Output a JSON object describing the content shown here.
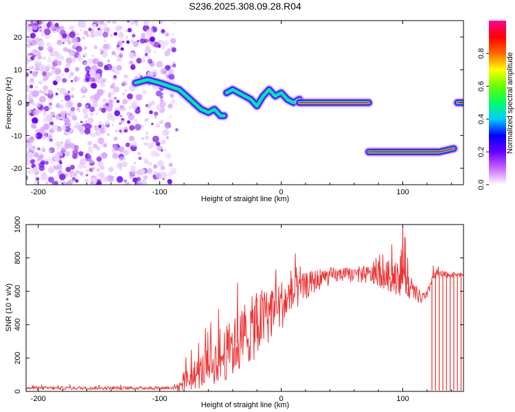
{
  "title": "S236.2025.308.09.28.R04",
  "colors": {
    "snr_line": "#ee3333",
    "frame": "#000000",
    "colormap": [
      "#ffffff",
      "#cc66ff",
      "#6600ff",
      "#0000ff",
      "#00ccff",
      "#00ff66",
      "#66ff00",
      "#ffff00",
      "#ff6600",
      "#ff0000",
      "#ff0099"
    ]
  },
  "chart_data": [
    {
      "type": "heatmap",
      "name": "spectrogram",
      "xlabel": "Height of straight line (km)",
      "ylabel": "Frequency (Hz)",
      "xlim": [
        -210,
        150
      ],
      "ylim": [
        -25,
        25
      ],
      "xticks": [
        -200,
        -100,
        0,
        100
      ],
      "yticks": [
        -20,
        -10,
        0,
        10,
        20
      ],
      "grid": false,
      "noise_region_x": [
        -210,
        -88
      ],
      "traces": [
        {
          "x": [
            -120,
            -110,
            -100,
            -92,
            -84,
            -78,
            -72,
            -66,
            -60,
            -55,
            -50,
            -47
          ],
          "y": [
            6,
            7,
            6,
            5,
            4,
            2,
            0,
            -2,
            -3,
            -2,
            -4,
            -4
          ],
          "amplitude": 0.35
        },
        {
          "x": [
            -45,
            -40,
            -35,
            -30,
            -25,
            -20,
            -15,
            -10,
            -5,
            0,
            5,
            10,
            15
          ],
          "y": [
            3,
            4,
            3,
            2,
            1,
            -1,
            2,
            4,
            2,
            3,
            1,
            0,
            1
          ],
          "amplitude": 0.45
        },
        {
          "x": [
            15,
            30,
            45,
            60,
            72
          ],
          "y": [
            0,
            0,
            0,
            0,
            0
          ],
          "amplitude": 0.9
        },
        {
          "x": [
            72,
            85,
            100,
            115,
            130,
            142
          ],
          "y": [
            -15,
            -15,
            -15,
            -15,
            -15,
            -14
          ],
          "amplitude": 0.9
        },
        {
          "x": [
            145,
            150
          ],
          "y": [
            0,
            0
          ],
          "amplitude": 0.9
        }
      ],
      "colorbar": {
        "label": "Normalized spectral amplitude",
        "range": [
          0,
          1
        ],
        "ticks": [
          0.0,
          0.2,
          0.4,
          0.6,
          0.8
        ],
        "tick_labels": [
          "0.0",
          "0.2",
          "0.4",
          "0.6",
          "0.8"
        ]
      }
    },
    {
      "type": "line",
      "name": "snr",
      "xlabel": "Height of straight line (km)",
      "ylabel": "SNR (10 * v/v)",
      "xlim": [
        -210,
        150
      ],
      "ylim": [
        0,
        1000
      ],
      "xticks": [
        -200,
        -100,
        0,
        100
      ],
      "yticks": [
        0,
        200,
        400,
        600,
        800,
        1000
      ],
      "grid": false,
      "envelope": {
        "x": [
          -210,
          -150,
          -100,
          -85,
          -80,
          -70,
          -60,
          -50,
          -40,
          -30,
          -20,
          -10,
          0,
          10,
          20,
          30,
          40,
          50,
          60,
          70,
          80,
          90,
          95,
          100,
          105,
          110,
          115,
          120,
          125,
          135,
          145,
          150
        ],
        "y": [
          20,
          20,
          20,
          25,
          60,
          100,
          150,
          200,
          260,
          330,
          400,
          470,
          520,
          580,
          630,
          670,
          690,
          700,
          700,
          700,
          690,
          690,
          700,
          720,
          620,
          590,
          560,
          570,
          700,
          700,
          700,
          700
        ]
      },
      "noise_amplitude": {
        "x": [
          -210,
          -90,
          -80,
          -60,
          -40,
          -20,
          0,
          20,
          50,
          80,
          95,
          100,
          105,
          120,
          150
        ],
        "y": [
          10,
          10,
          60,
          120,
          180,
          200,
          150,
          80,
          40,
          60,
          120,
          150,
          60,
          30,
          10
        ]
      },
      "spikes": [
        {
          "x": -74,
          "y": 250
        },
        {
          "x": -68,
          "y": 290
        },
        {
          "x": -36,
          "y": 650
        },
        {
          "x": -30,
          "y": 520
        },
        {
          "x": -20,
          "y": 560
        },
        {
          "x": -8,
          "y": 600
        },
        {
          "x": 76,
          "y": 780
        },
        {
          "x": 78,
          "y": 800
        },
        {
          "x": 81,
          "y": 820
        },
        {
          "x": 91,
          "y": 880
        },
        {
          "x": 100,
          "y": 1000
        },
        {
          "x": 102,
          "y": 920
        },
        {
          "x": 104,
          "y": 800
        }
      ],
      "dropouts": [
        124,
        127,
        130,
        133,
        136,
        139,
        142,
        145,
        148
      ]
    }
  ]
}
